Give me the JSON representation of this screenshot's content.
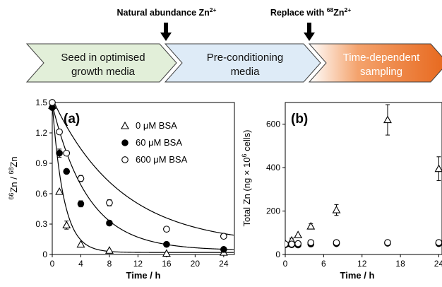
{
  "workflow": {
    "steps": [
      {
        "label_line1": "Seed in optimised",
        "label_line2": "growth media",
        "color": "#e2efd9"
      },
      {
        "label_line1": "Pre-conditioning",
        "label_line2": "media",
        "color": "#deebf7"
      },
      {
        "label_line1": "Time-dependent",
        "label_line2": "sampling",
        "color": "#ed7d31"
      }
    ],
    "markers": [
      {
        "label": "Natural abundance Zn",
        "sup": "2+"
      },
      {
        "label_pre": "Replace with ",
        "iso": "68",
        "label_post": "Zn",
        "sup": "2+"
      }
    ]
  },
  "chart_data": [
    {
      "type": "scatter",
      "panel_label": "(a)",
      "xlabel": "Time / h",
      "ylabel": {
        "sup1": "66",
        "mid": "Zn / ",
        "sup2": "68",
        "end": "Zn"
      },
      "xlim": [
        0,
        25.5
      ],
      "ylim": [
        0,
        1.5
      ],
      "xticks": [
        0,
        4,
        8,
        12,
        16,
        20,
        24
      ],
      "yticks": [
        "0",
        "0.3",
        "0.6",
        "0.9",
        "1.2",
        "1.5"
      ],
      "legend_position": "top-right",
      "series": [
        {
          "name": "0 μM BSA",
          "marker": "triangle-open",
          "x": [
            0,
            1,
            2,
            4,
            8,
            16,
            24
          ],
          "y": [
            1.47,
            0.62,
            0.29,
            0.1,
            0.04,
            0.01,
            0.02
          ],
          "err": [
            0,
            0,
            0.04,
            0,
            0,
            0,
            0
          ],
          "fit": {
            "a": 1.47,
            "k": 0.62,
            "c": 0.02
          }
        },
        {
          "name": "60 μM BSA",
          "marker": "circle-filled",
          "x": [
            0,
            1,
            2,
            4,
            8,
            16,
            24
          ],
          "y": [
            1.45,
            1.0,
            0.82,
            0.5,
            0.31,
            0.1,
            0.05
          ],
          "err": [
            0,
            0.04,
            0,
            0.03,
            0,
            0,
            0
          ],
          "fit": {
            "a": 1.44,
            "k": 0.2,
            "c": 0.04
          }
        },
        {
          "name": "600 μM BSA",
          "marker": "circle-open",
          "x": [
            0,
            1,
            2,
            4,
            8,
            16,
            24
          ],
          "y": [
            1.5,
            1.21,
            1.0,
            0.75,
            0.51,
            0.25,
            0.18
          ],
          "err": [
            0,
            0,
            0,
            0.03,
            0.03,
            0,
            0
          ],
          "fit": {
            "a": 1.45,
            "k": 0.105,
            "c": 0.09
          }
        }
      ]
    },
    {
      "type": "scatter",
      "panel_label": "(b)",
      "xlabel": "Time / h",
      "ylabel": {
        "pre": "Total Zn (ng × 10",
        "sup": "6",
        "post": " cells)"
      },
      "xlim": [
        0,
        24.5
      ],
      "ylim": [
        0,
        700
      ],
      "xticks": [
        0,
        6,
        12,
        18,
        24
      ],
      "yticks": [
        0,
        200,
        400,
        600
      ],
      "series": [
        {
          "name": "0 μM BSA",
          "marker": "triangle-open",
          "x": [
            0,
            1,
            2,
            4,
            8,
            16,
            24
          ],
          "y": [
            50,
            65,
            90,
            130,
            205,
            620,
            395
          ],
          "err": [
            0,
            10,
            0,
            12,
            25,
            70,
            55
          ]
        },
        {
          "name": "60 μM BSA",
          "marker": "circle-filled",
          "x": [
            0,
            1,
            2,
            4,
            8,
            16,
            24
          ],
          "y": [
            45,
            45,
            44,
            48,
            50,
            52,
            50
          ],
          "err": [
            0,
            0,
            0,
            8,
            0,
            0,
            0
          ]
        },
        {
          "name": "600 μM BSA",
          "marker": "circle-open",
          "x": [
            0,
            1,
            2,
            4,
            8,
            16,
            24
          ],
          "y": [
            48,
            48,
            50,
            55,
            55,
            55,
            55
          ],
          "err": [
            0,
            0,
            0,
            8,
            8,
            0,
            8
          ]
        }
      ]
    }
  ]
}
